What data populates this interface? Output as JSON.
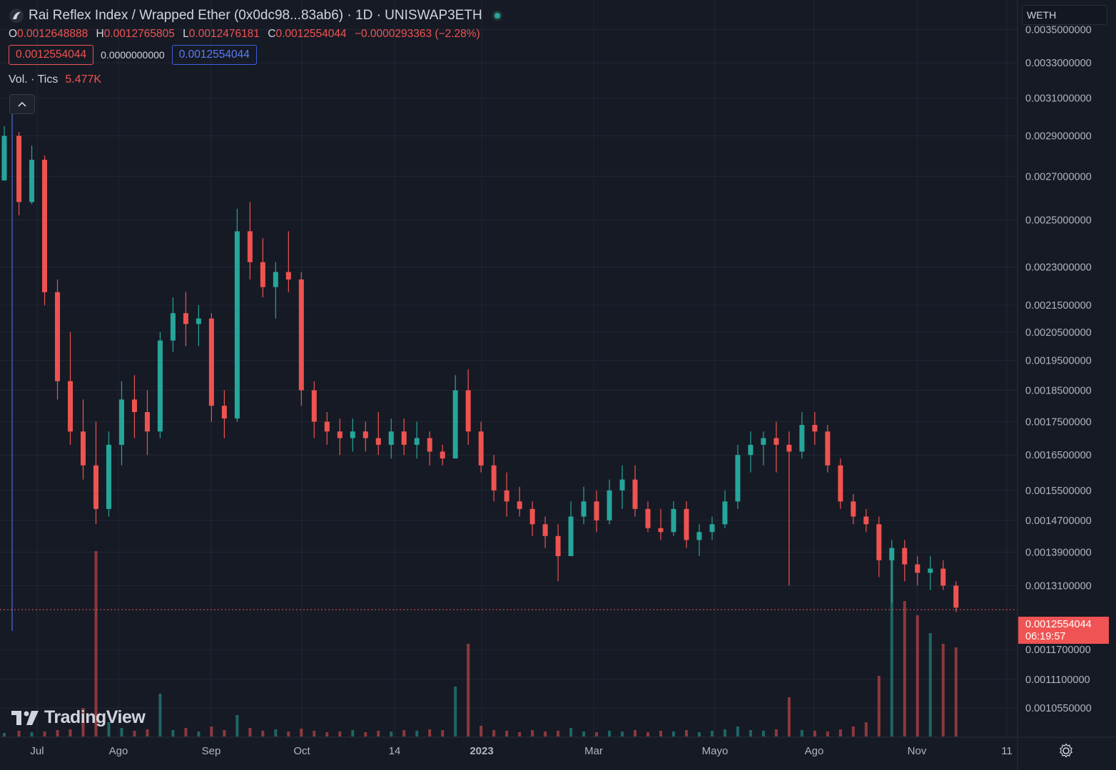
{
  "header": {
    "title": "Rai Reflex Index / Wrapped Ether (0x0dc98...83ab6) · 1D · UNISWAP3ETH",
    "ohlc": [
      {
        "k": "O",
        "v": "0.0012648888"
      },
      {
        "k": "H",
        "v": "0.0012765805"
      },
      {
        "k": "L",
        "v": "0.0012476181"
      },
      {
        "k": "C",
        "v": "0.0012554044"
      }
    ],
    "change": "−0.0000293363 (−2.28%)",
    "sell_price": "0.0012554044",
    "spread": "0.0000000000",
    "buy_price": "0.0012554044",
    "volume_label": "Vol. · Tics",
    "volume_value": "5.477K"
  },
  "axis": {
    "symbol": "WETH",
    "last_price": "0.0012554044",
    "countdown": "06:19:57"
  },
  "branding": {
    "logo_text": "TradingView"
  },
  "colors": {
    "up": "#26a69a",
    "down": "#ef5350",
    "background": "#161a25",
    "grid": "#232733",
    "crosshair": "#5b7cf7"
  },
  "icons": {
    "settings": "gear-icon",
    "collapse": "chevron-up-icon",
    "status": "green-dot-icon"
  },
  "chart_data": {
    "type": "candlestick",
    "title": "Rai Reflex Index / Wrapped Ether (0x0dc98...83ab6) · 1D · UNISWAP3ETH",
    "y_scale": "log",
    "ylim": [
      0.00102,
      0.00355
    ],
    "y_ticks": [
      "0.0035000000",
      "0.0033000000",
      "0.0031000000",
      "0.0029000000",
      "0.0027000000",
      "0.0025000000",
      "0.0023000000",
      "0.0021500000",
      "0.0020500000",
      "0.0019500000",
      "0.0018500000",
      "0.0017500000",
      "0.0016500000",
      "0.0015500000",
      "0.0014700000",
      "0.0013900000",
      "0.0013100000",
      "0.0012554044",
      "0.0011700000",
      "0.0011100000",
      "0.0010550000"
    ],
    "x_ticks": [
      "Jul",
      "Ago",
      "Sep",
      "Oct",
      "14",
      "2023",
      "Mar",
      "Mayo",
      "Ago",
      "Nov",
      "11"
    ],
    "x_range": [
      "2022-06-23",
      "2023-12-12"
    ],
    "candles": [
      [
        "2022-06-23",
        0.00268,
        0.00295,
        0.00268,
        0.0029
      ],
      [
        "2022-07-01",
        0.0029,
        0.00292,
        0.00252,
        0.00258
      ],
      [
        "2022-07-08",
        0.00258,
        0.00285,
        0.00257,
        0.00278
      ],
      [
        "2022-07-15",
        0.00278,
        0.0028,
        0.00215,
        0.0022
      ],
      [
        "2022-07-22",
        0.0022,
        0.00225,
        0.00182,
        0.00188
      ],
      [
        "2022-07-29",
        0.00188,
        0.00205,
        0.00168,
        0.00172
      ],
      [
        "2022-08-05",
        0.00172,
        0.00182,
        0.00158,
        0.00162
      ],
      [
        "2022-08-12",
        0.00162,
        0.00175,
        0.00146,
        0.0015
      ],
      [
        "2022-08-19",
        0.0015,
        0.00172,
        0.00148,
        0.00168
      ],
      [
        "2022-08-26",
        0.00168,
        0.00188,
        0.00162,
        0.00182
      ],
      [
        "2022-09-02",
        0.00182,
        0.0019,
        0.0017,
        0.00178
      ],
      [
        "2022-09-09",
        0.00178,
        0.00185,
        0.00165,
        0.00172
      ],
      [
        "2022-09-16",
        0.00172,
        0.00205,
        0.0017,
        0.00202
      ],
      [
        "2022-09-23",
        0.00202,
        0.00218,
        0.00198,
        0.00212
      ],
      [
        "2022-09-30",
        0.00212,
        0.0022,
        0.002,
        0.00208
      ],
      [
        "2022-10-07",
        0.00208,
        0.00215,
        0.002,
        0.0021
      ],
      [
        "2022-10-14",
        0.0021,
        0.00212,
        0.00175,
        0.0018
      ],
      [
        "2022-10-21",
        0.0018,
        0.00185,
        0.0017,
        0.00176
      ],
      [
        "2022-10-28",
        0.00176,
        0.00255,
        0.00175,
        0.00245
      ],
      [
        "2022-11-04",
        0.00245,
        0.00258,
        0.00225,
        0.00232
      ],
      [
        "2022-11-11",
        0.00232,
        0.00242,
        0.00218,
        0.00222
      ],
      [
        "2022-11-18",
        0.00222,
        0.00232,
        0.0021,
        0.00228
      ],
      [
        "2022-11-25",
        0.00228,
        0.00245,
        0.0022,
        0.00225
      ],
      [
        "2022-12-02",
        0.00225,
        0.00228,
        0.0018,
        0.00185
      ],
      [
        "2022-12-09",
        0.00185,
        0.00188,
        0.0017,
        0.00175
      ],
      [
        "2022-12-16",
        0.00175,
        0.00178,
        0.00168,
        0.00172
      ],
      [
        "2022-12-23",
        0.00172,
        0.00176,
        0.00165,
        0.0017
      ],
      [
        "2022-12-30",
        0.0017,
        0.00176,
        0.00166,
        0.00172
      ],
      [
        "2023-01-06",
        0.00172,
        0.00175,
        0.00166,
        0.0017
      ],
      [
        "2023-01-13",
        0.0017,
        0.00178,
        0.00165,
        0.00168
      ],
      [
        "2023-01-20",
        0.00168,
        0.00176,
        0.00164,
        0.00172
      ],
      [
        "2023-01-27",
        0.00172,
        0.00176,
        0.00165,
        0.00168
      ],
      [
        "2023-02-03",
        0.00168,
        0.00175,
        0.00164,
        0.0017
      ],
      [
        "2023-02-10",
        0.0017,
        0.00172,
        0.00162,
        0.00166
      ],
      [
        "2023-02-17",
        0.00166,
        0.00168,
        0.00162,
        0.00164
      ],
      [
        "2023-02-24",
        0.00164,
        0.0019,
        0.00164,
        0.00185
      ],
      [
        "2023-03-03",
        0.00185,
        0.00192,
        0.00168,
        0.00172
      ],
      [
        "2023-03-10",
        0.00172,
        0.00175,
        0.0016,
        0.00162
      ],
      [
        "2023-03-17",
        0.00162,
        0.00165,
        0.00152,
        0.00155
      ],
      [
        "2023-03-24",
        0.00155,
        0.0016,
        0.00148,
        0.00152
      ],
      [
        "2023-03-31",
        0.00152,
        0.00156,
        0.00148,
        0.0015
      ],
      [
        "2023-04-07",
        0.0015,
        0.00152,
        0.00143,
        0.00146
      ],
      [
        "2023-04-14",
        0.00146,
        0.00148,
        0.0014,
        0.00143
      ],
      [
        "2023-04-21",
        0.00143,
        0.00146,
        0.00132,
        0.00138
      ],
      [
        "2023-04-28",
        0.00138,
        0.00152,
        0.00138,
        0.00148
      ],
      [
        "2023-05-05",
        0.00148,
        0.00156,
        0.00146,
        0.00152
      ],
      [
        "2023-05-12",
        0.00152,
        0.00155,
        0.00144,
        0.00147
      ],
      [
        "2023-05-19",
        0.00147,
        0.00158,
        0.00146,
        0.00155
      ],
      [
        "2023-05-26",
        0.00155,
        0.00162,
        0.0015,
        0.00158
      ],
      [
        "2023-06-02",
        0.00158,
        0.00162,
        0.00148,
        0.0015
      ],
      [
        "2023-06-09",
        0.0015,
        0.00152,
        0.00144,
        0.00145
      ],
      [
        "2023-06-16",
        0.00145,
        0.0015,
        0.00142,
        0.00144
      ],
      [
        "2023-06-23",
        0.00144,
        0.00152,
        0.00143,
        0.0015
      ],
      [
        "2023-06-30",
        0.0015,
        0.00152,
        0.0014,
        0.00142
      ],
      [
        "2023-07-07",
        0.00142,
        0.00146,
        0.00138,
        0.00144
      ],
      [
        "2023-07-14",
        0.00144,
        0.00148,
        0.00142,
        0.00146
      ],
      [
        "2023-07-21",
        0.00146,
        0.00155,
        0.00145,
        0.00152
      ],
      [
        "2023-07-28",
        0.00152,
        0.00168,
        0.0015,
        0.00165
      ],
      [
        "2023-08-04",
        0.00165,
        0.00172,
        0.0016,
        0.00168
      ],
      [
        "2023-08-11",
        0.00168,
        0.00172,
        0.00162,
        0.0017
      ],
      [
        "2023-08-18",
        0.0017,
        0.00175,
        0.0016,
        0.00168
      ],
      [
        "2023-08-25",
        0.00168,
        0.00172,
        0.00131,
        0.00166
      ],
      [
        "2023-09-01",
        0.00166,
        0.00178,
        0.00164,
        0.00174
      ],
      [
        "2023-09-08",
        0.00174,
        0.00178,
        0.00168,
        0.00172
      ],
      [
        "2023-09-15",
        0.00172,
        0.00174,
        0.0016,
        0.00162
      ],
      [
        "2023-09-22",
        0.00162,
        0.00164,
        0.0015,
        0.00152
      ],
      [
        "2023-09-29",
        0.00152,
        0.00154,
        0.00146,
        0.00148
      ],
      [
        "2023-10-06",
        0.00148,
        0.0015,
        0.00144,
        0.00146
      ],
      [
        "2023-10-13",
        0.00146,
        0.00148,
        0.00133,
        0.00137
      ],
      [
        "2023-10-20",
        0.00137,
        0.00142,
        0.00127,
        0.0014
      ],
      [
        "2023-10-27",
        0.0014,
        0.00142,
        0.00132,
        0.00136
      ],
      [
        "2023-11-03",
        0.00136,
        0.00138,
        0.00131,
        0.00134
      ],
      [
        "2023-11-10",
        0.00134,
        0.00138,
        0.0013,
        0.00135
      ],
      [
        "2023-11-17",
        0.00135,
        0.00137,
        0.0013,
        0.00131
      ],
      [
        "2023-11-24",
        0.00131,
        0.00132,
        0.00125,
        0.00126
      ]
    ],
    "volume": [
      [
        "2022-06-23",
        5
      ],
      [
        "2022-07-01",
        8
      ],
      [
        "2022-07-08",
        6
      ],
      [
        "2022-07-15",
        7
      ],
      [
        "2022-07-22",
        9
      ],
      [
        "2022-07-29",
        10
      ],
      [
        "2022-08-05",
        40
      ],
      [
        "2022-08-12",
        260
      ],
      [
        "2022-08-19",
        20
      ],
      [
        "2022-08-26",
        12
      ],
      [
        "2022-09-02",
        8
      ],
      [
        "2022-09-09",
        10
      ],
      [
        "2022-09-16",
        60
      ],
      [
        "2022-09-23",
        9
      ],
      [
        "2022-09-30",
        12
      ],
      [
        "2022-10-07",
        7
      ],
      [
        "2022-10-14",
        14
      ],
      [
        "2022-10-21",
        9
      ],
      [
        "2022-10-28",
        30
      ],
      [
        "2022-11-04",
        12
      ],
      [
        "2022-11-11",
        8
      ],
      [
        "2022-11-18",
        10
      ],
      [
        "2022-11-25",
        7
      ],
      [
        "2022-12-02",
        11
      ],
      [
        "2022-12-09",
        8
      ],
      [
        "2022-12-16",
        6
      ],
      [
        "2022-12-23",
        7
      ],
      [
        "2022-12-30",
        9
      ],
      [
        "2023-01-06",
        6
      ],
      [
        "2023-01-13",
        8
      ],
      [
        "2023-01-20",
        7
      ],
      [
        "2023-01-27",
        9
      ],
      [
        "2023-02-03",
        8
      ],
      [
        "2023-02-10",
        10
      ],
      [
        "2023-02-17",
        9
      ],
      [
        "2023-02-24",
        70
      ],
      [
        "2023-03-03",
        130
      ],
      [
        "2023-03-10",
        15
      ],
      [
        "2023-03-17",
        9
      ],
      [
        "2023-03-24",
        8
      ],
      [
        "2023-03-31",
        6
      ],
      [
        "2023-04-07",
        9
      ],
      [
        "2023-04-14",
        7
      ],
      [
        "2023-04-21",
        8
      ],
      [
        "2023-04-28",
        12
      ],
      [
        "2023-05-05",
        7
      ],
      [
        "2023-05-12",
        6
      ],
      [
        "2023-05-19",
        8
      ],
      [
        "2023-05-26",
        7
      ],
      [
        "2023-06-02",
        9
      ],
      [
        "2023-06-09",
        6
      ],
      [
        "2023-06-16",
        8
      ],
      [
        "2023-06-23",
        7
      ],
      [
        "2023-06-30",
        9
      ],
      [
        "2023-07-07",
        6
      ],
      [
        "2023-07-14",
        8
      ],
      [
        "2023-07-21",
        10
      ],
      [
        "2023-07-28",
        14
      ],
      [
        "2023-08-04",
        9
      ],
      [
        "2023-08-11",
        8
      ],
      [
        "2023-08-18",
        10
      ],
      [
        "2023-08-25",
        55
      ],
      [
        "2023-09-01",
        9
      ],
      [
        "2023-09-08",
        8
      ],
      [
        "2023-09-15",
        7
      ],
      [
        "2023-09-22",
        10
      ],
      [
        "2023-09-29",
        14
      ],
      [
        "2023-10-06",
        20
      ],
      [
        "2023-10-13",
        85
      ],
      [
        "2023-10-20",
        260
      ],
      [
        "2023-10-27",
        190
      ],
      [
        "2023-11-03",
        170
      ],
      [
        "2023-11-10",
        145
      ],
      [
        "2023-11-17",
        130
      ],
      [
        "2023-11-24",
        125
      ]
    ]
  }
}
